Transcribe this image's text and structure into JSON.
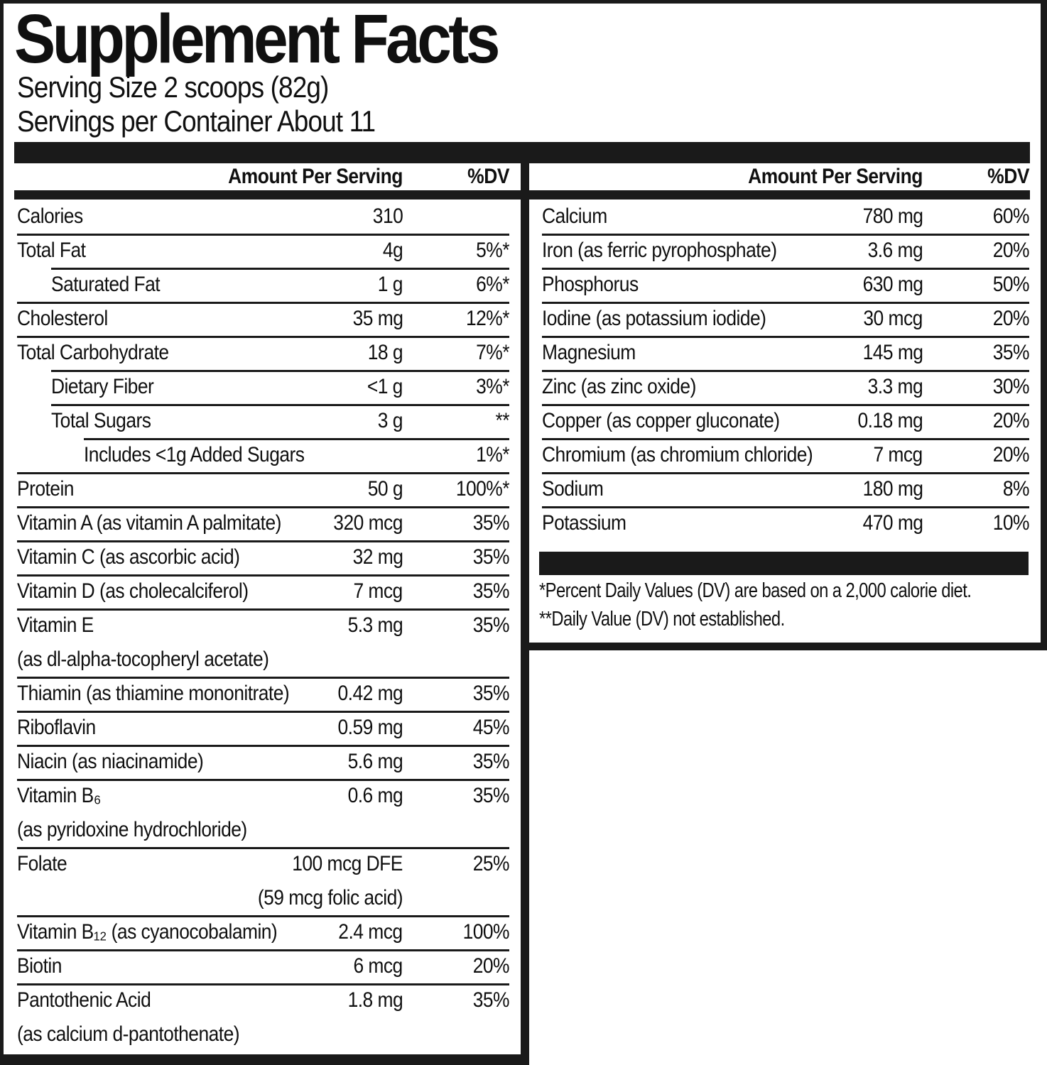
{
  "title": "Supplement Facts",
  "serving": {
    "size": "Serving Size 2 scoops (82g)",
    "per_container": "Servings per Container About 11"
  },
  "table_header": {
    "amount": "Amount Per Serving",
    "dv": "%DV"
  },
  "left_rows": [
    {
      "name": "Calories",
      "amt": "310",
      "dv": "",
      "first": true
    },
    {
      "name": "Total Fat",
      "amt": "4g",
      "dv": "5%*"
    },
    {
      "name": "Saturated Fat",
      "amt": "1 g",
      "dv": "6%*",
      "indent": 1
    },
    {
      "name": "Cholesterol",
      "amt": "35 mg",
      "dv": "12%*"
    },
    {
      "name": "Total Carbohydrate",
      "amt": "18 g",
      "dv": "7%*"
    },
    {
      "name": "Dietary Fiber",
      "amt": "<1 g",
      "dv": "3%*",
      "indent": 1
    },
    {
      "name": "Total Sugars",
      "amt": "3 g",
      "dv": "**",
      "indent": 1
    },
    {
      "name": "Includes <1g Added Sugars",
      "amt": "",
      "dv": "1%*",
      "indent": 2
    },
    {
      "name": "Protein",
      "amt": "50 g",
      "dv": "100%*"
    },
    {
      "name": "Vitamin A (as vitamin A palmitate)",
      "amt": "320 mcg",
      "dv": "35%"
    },
    {
      "name": "Vitamin C (as ascorbic acid)",
      "amt": "32 mg",
      "dv": "35%"
    },
    {
      "name": "Vitamin D (as cholecalciferol)",
      "amt": "7 mcg",
      "dv": "35%"
    },
    {
      "name": "Vitamin E",
      "amt": "5.3 mg",
      "dv": "35%",
      "sub_left": "(as dl-alpha-tocopheryl acetate)"
    },
    {
      "name": "Thiamin (as thiamine mononitrate)",
      "amt": "0.42 mg",
      "dv": "35%"
    },
    {
      "name": "Riboflavin",
      "amt": "0.59 mg",
      "dv": "45%"
    },
    {
      "name": "Niacin (as niacinamide)",
      "amt": "5.6 mg",
      "dv": "35%"
    },
    {
      "name": "Vitamin B₆",
      "amt": "0.6 mg",
      "dv": "35%",
      "sub_left": "(as pyridoxine hydrochloride)"
    },
    {
      "name": "Folate",
      "amt": "100 mcg DFE",
      "dv": "25%",
      "sub_amt": "(59 mcg folic acid)"
    },
    {
      "name": "Vitamin B₁₂ (as cyanocobalamin)",
      "amt": "2.4 mcg",
      "dv": "100%"
    },
    {
      "name": "Biotin",
      "amt": "6 mcg",
      "dv": "20%"
    },
    {
      "name": "Pantothenic Acid",
      "amt": "1.8 mg",
      "dv": "35%",
      "sub_left": "(as calcium d-pantothenate)"
    }
  ],
  "right_rows": [
    {
      "name": "Calcium",
      "amt": "780 mg",
      "dv": "60%",
      "first": true
    },
    {
      "name": "Iron (as ferric pyrophosphate)",
      "amt": "3.6 mg",
      "dv": "20%"
    },
    {
      "name": "Phosphorus",
      "amt": "630 mg",
      "dv": "50%"
    },
    {
      "name": "Iodine (as potassium iodide)",
      "amt": "30 mcg",
      "dv": "20%"
    },
    {
      "name": "Magnesium",
      "amt": "145 mg",
      "dv": "35%"
    },
    {
      "name": "Zinc (as zinc oxide)",
      "amt": "3.3 mg",
      "dv": "30%"
    },
    {
      "name": "Copper (as copper gluconate)",
      "amt": "0.18 mg",
      "dv": "20%"
    },
    {
      "name": "Chromium (as chromium chloride)",
      "amt": "7 mcg",
      "dv": "20%"
    },
    {
      "name": "Sodium",
      "amt": "180 mg",
      "dv": "8%"
    },
    {
      "name": "Potassium",
      "amt": "470 mg",
      "dv": "10%"
    }
  ],
  "footnotes": [
    "*Percent Daily Values (DV) are based on a 2,000 calorie diet.",
    "**Daily Value (DV) not established."
  ],
  "colors": {
    "ink": "#101010",
    "bar": "#1a1a1a",
    "background": "#ffffff"
  }
}
